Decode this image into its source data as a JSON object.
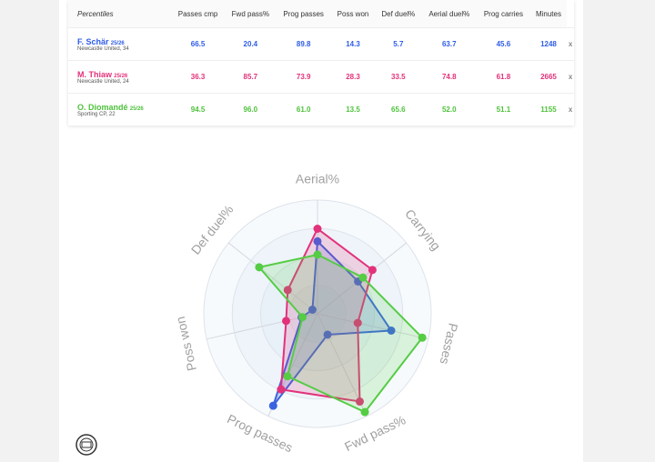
{
  "table": {
    "header": [
      "Percentiles",
      "Passes cmp",
      "Fwd pass%",
      "Prog passes",
      "Poss won",
      "Def duel%",
      "Aerial duel%",
      "Prog carries",
      "Minutes"
    ],
    "rows": [
      {
        "name": "F. Schär",
        "season": "25/26",
        "team": "Newcastle United, 34",
        "color": "#2f5de6",
        "cells": [
          "66.5",
          "20.4",
          "89.8",
          "14.3",
          "5.7",
          "63.7",
          "45.6",
          "1248"
        ],
        "remove": "x"
      },
      {
        "name": "M. Thiaw",
        "season": "25/26",
        "team": "Newcastle United, 24",
        "color": "#e2327b",
        "cells": [
          "36.3",
          "85.7",
          "73.9",
          "28.3",
          "33.5",
          "74.8",
          "61.8",
          "2665"
        ],
        "remove": "x"
      },
      {
        "name": "O. Diomandé",
        "season": "25/26",
        "team": "Sporting CP, 22",
        "color": "#4fc23c",
        "cells": [
          "94.5",
          "96.0",
          "61.0",
          "13.5",
          "65.6",
          "52.0",
          "51.1",
          "1155"
        ],
        "remove": "x"
      }
    ]
  },
  "chart_data": {
    "type": "radar",
    "axes": [
      "Aerial%",
      "Carrying",
      "Passes",
      "Fwd pass%",
      "Prog passes",
      "Poss won",
      "Def duel%"
    ],
    "rlim": [
      0,
      100
    ],
    "series": [
      {
        "color": "#3b63e0",
        "values": [
          63.7,
          45.6,
          66.5,
          20.4,
          89.8,
          14.3,
          5.7
        ]
      },
      {
        "color": "#e2327b",
        "values": [
          74.8,
          61.8,
          36.3,
          85.7,
          73.9,
          28.3,
          33.5
        ]
      },
      {
        "color": "#55cc44",
        "values": [
          52.0,
          51.1,
          94.5,
          96.0,
          61.0,
          13.5,
          65.6
        ]
      }
    ]
  }
}
